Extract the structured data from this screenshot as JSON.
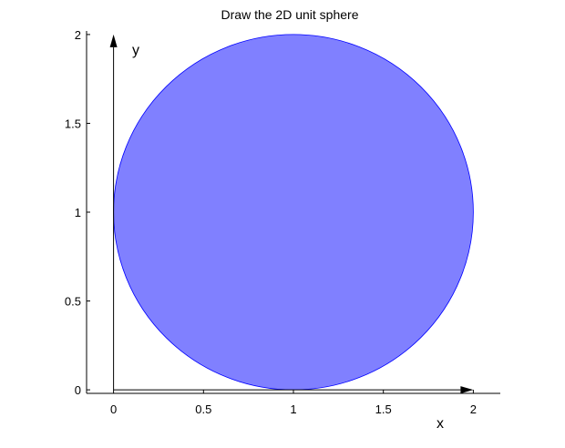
{
  "chart_data": {
    "type": "scatter",
    "title": "Draw the 2D unit sphere",
    "xlabel": "x",
    "ylabel": "y",
    "xlim": [
      -0.15,
      2.15
    ],
    "ylim": [
      -0.02,
      2.02
    ],
    "x_ticks": [
      0,
      0.5,
      1,
      1.5,
      2
    ],
    "x_tick_labels": [
      "0",
      "0.5",
      "1",
      "1.5",
      "2"
    ],
    "y_ticks": [
      0,
      0.5,
      1,
      1.5,
      2
    ],
    "y_tick_labels": [
      "0",
      "0.5",
      "1",
      "1.5",
      "2"
    ],
    "grid": false,
    "shape": {
      "kind": "filled-circle",
      "center": [
        1,
        1
      ],
      "radius": 1,
      "fill_color": "#8080ff",
      "edge_color": "#0000ff"
    },
    "arrows": [
      {
        "name": "x-axis-arrow",
        "from": [
          0,
          0
        ],
        "to": [
          2,
          0
        ]
      },
      {
        "name": "y-axis-arrow",
        "from": [
          0,
          0
        ],
        "to": [
          0,
          2
        ]
      }
    ]
  }
}
